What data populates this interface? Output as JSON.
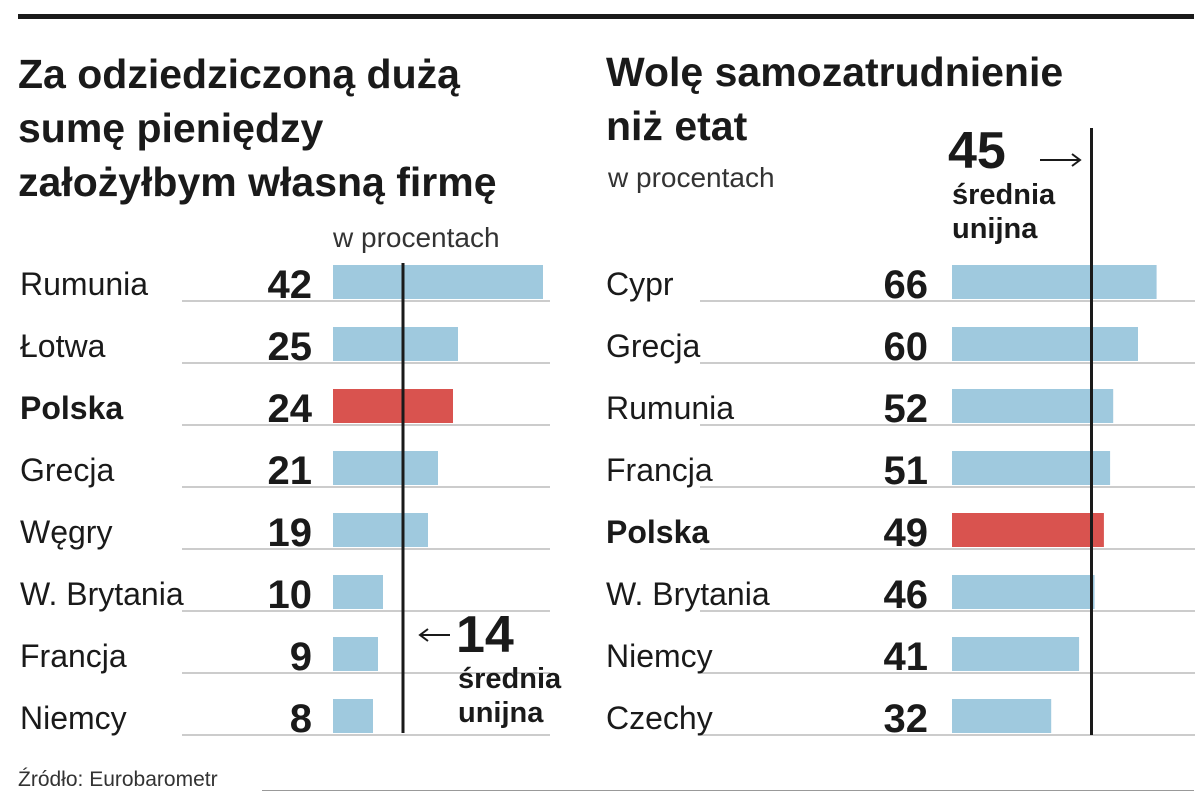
{
  "charts": {
    "left": {
      "title": "Za odziedziczoną dużą\nsumę pieniędzy\nzałożyłbym własną firmę",
      "subtitle": "w procentach"
    },
    "right": {
      "title": "Wolę samozatrudnienie\nniż etat",
      "subtitle": "w procentach"
    }
  },
  "source": "Źródło: Eurobarometr",
  "colors": {
    "bar": "#9fc9de",
    "highlight": "#d9534f",
    "text": "#1a1a1a",
    "rule": "#999999"
  },
  "chart_data": [
    {
      "type": "bar",
      "orientation": "horizontal",
      "title": "Za odziedziczoną dużą sumę pieniędzy założyłbym własną firmę",
      "subtitle": "w procentach",
      "categories": [
        "Rumunia",
        "Łotwa",
        "Polska",
        "Grecja",
        "Węgry",
        "W. Brytania",
        "Francja",
        "Niemcy"
      ],
      "values": [
        42,
        25,
        24,
        21,
        19,
        10,
        9,
        8
      ],
      "highlight": "Polska",
      "reference": {
        "value": 14,
        "label": "średnia unijna"
      }
    },
    {
      "type": "bar",
      "orientation": "horizontal",
      "title": "Wolę samozatrudnienie niż etat",
      "subtitle": "w procentach",
      "categories": [
        "Cypr",
        "Grecja",
        "Rumunia",
        "Francja",
        "Polska",
        "W. Brytania",
        "Niemcy",
        "Czechy"
      ],
      "values": [
        66,
        60,
        52,
        51,
        49,
        46,
        41,
        32
      ],
      "highlight": "Polska",
      "reference": {
        "value": 45,
        "label": "średnia unijna"
      }
    }
  ]
}
